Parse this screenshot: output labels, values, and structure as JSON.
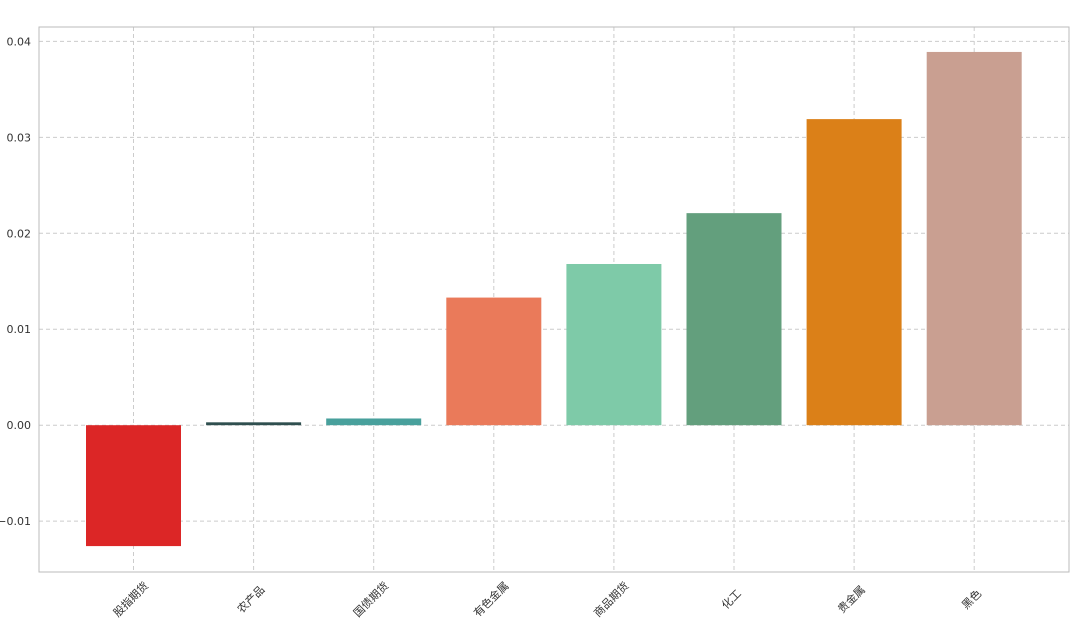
{
  "chart_data": {
    "type": "bar",
    "title": "",
    "xlabel": "",
    "ylabel": "",
    "categories": [
      "股指期货",
      "农产品",
      "国债期货",
      "有色金属",
      "商品期货",
      "化工",
      "贵金属",
      "黑色"
    ],
    "values": [
      -0.0126,
      0.0003,
      0.0007,
      0.0133,
      0.0168,
      0.0221,
      0.0319,
      0.0389
    ],
    "colors": [
      "#dc2626",
      "#2f4f4f",
      "#48a09c",
      "#ea7a5a",
      "#7ecaa8",
      "#639f7d",
      "#db8018",
      "#c99f91"
    ],
    "ylim": [
      -0.0153,
      0.0415
    ],
    "yticks": [
      -0.01,
      0.0,
      0.01,
      0.02,
      0.03,
      0.04
    ],
    "ytick_labels": [
      "−0.01",
      "0.00",
      "0.01",
      "0.02",
      "0.03",
      "0.04"
    ],
    "grid": true,
    "legend": "none"
  }
}
